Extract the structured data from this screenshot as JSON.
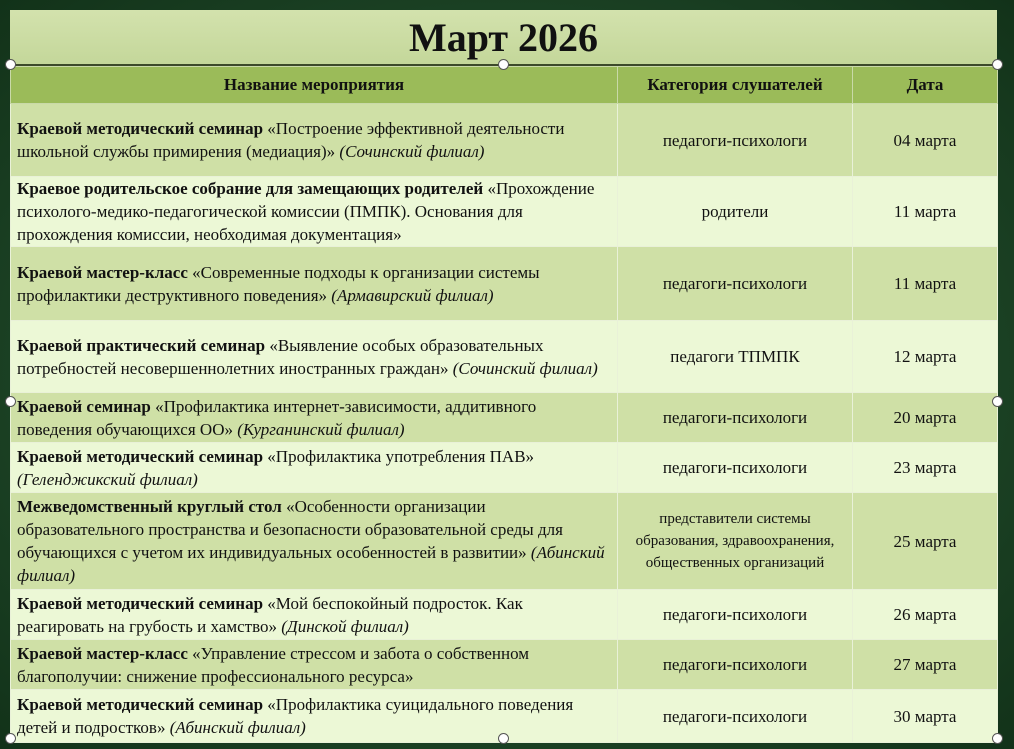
{
  "title": "Март 2026",
  "headers": {
    "name": "Название мероприятия",
    "category": "Категория слушателей",
    "date": "Дата"
  },
  "rows": [
    {
      "bold": "Краевой методический семинар",
      "text": " «Построение эффективной деятельности школьной службы примирения (медиация)» ",
      "branch": "(Сочинский филиал)",
      "category": "педагоги-психологи",
      "date": "04 марта"
    },
    {
      "bold": "Краевое родительское собрание для замещающих родителей",
      "text": " «Прохождение психолого-медико-педагогической комиссии (ПМПК). Основания для прохождения комиссии, необходимая документация»",
      "branch": "",
      "category": "родители",
      "date": "11 марта"
    },
    {
      "bold": "Краевой мастер-класс",
      "text": " «Современные подходы к организации системы профилактики деструктивного поведения» ",
      "branch": "(Армавирский филиал)",
      "category": "педагоги-психологи",
      "date": "11 марта"
    },
    {
      "bold": "Краевой практический семинар",
      "text": " «Выявление особых образовательных потребностей несовершеннолетних иностранных граждан» ",
      "branch": "(Сочинский филиал)",
      "category": "педагоги ТПМПК",
      "date": "12 марта"
    },
    {
      "bold": "Краевой семинар",
      "text": " «Профилактика интернет-зависимости, аддитивного поведения обучающихся ОО» ",
      "branch": "(Курганинский филиал)",
      "category": "педагоги-психологи",
      "date": "20 марта"
    },
    {
      "bold": "Краевой методический семинар",
      "text": "  «Профилактика употребления ПАВ» ",
      "branch": "(Геленджикский филиал)",
      "category": "педагоги-психологи",
      "date": "23 марта"
    },
    {
      "bold": "Межведомственный круглый стол",
      "text": " «Особенности организации образовательного пространства и безопасности образовательной среды для обучающихся с учетом их индивидуальных особенностей в развитии» ",
      "branch": "(Абинский филиал)",
      "category": "представители системы образования, здравоохранения, общественных организаций",
      "date": "25 марта"
    },
    {
      "bold": "Краевой методический семинар",
      "text": "  «Мой беспокойный подросток. Как реагировать на грубость и хамство» ",
      "branch": "(Динской филиал)",
      "category": "педагоги-психологи",
      "date": "26 марта"
    },
    {
      "bold": "Краевой мастер-класс",
      "text": "  «Управление стрессом и забота о собственном благополучии: снижение профессионального ресурса»",
      "branch": "",
      "category": "педагоги-психологи",
      "date": "27 марта"
    },
    {
      "bold": "Краевой методический семинар",
      "text": " «Профилактика суицидального поведения детей и подростков» ",
      "branch": "(Абинский филиал)",
      "category": "педагоги-психологи",
      "date": "30 марта"
    }
  ]
}
